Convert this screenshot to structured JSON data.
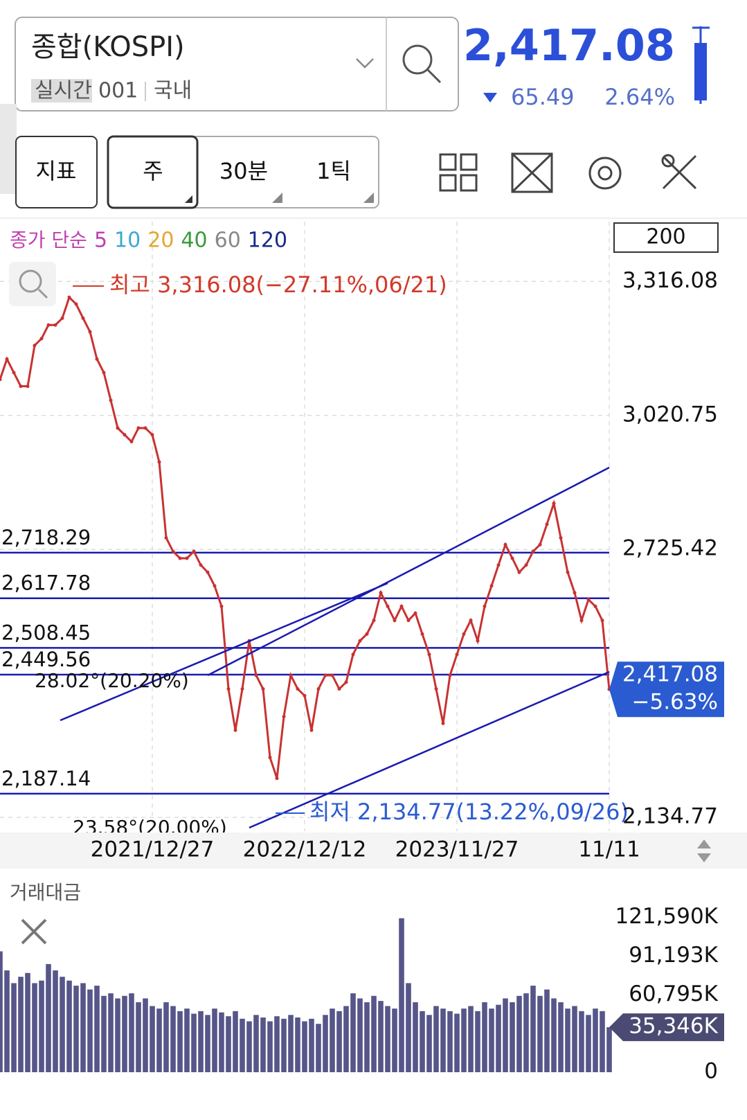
{
  "header": {
    "symbol": "종합(KOSPI)",
    "tags": [
      "실시간",
      "001",
      "국내"
    ],
    "price": "2,417.08",
    "change": "65.49",
    "change_pct": "2.64%"
  },
  "toolbar": {
    "buttons": [
      "지표",
      "주",
      "30분",
      "1틱"
    ]
  },
  "chart_data": [
    {
      "type": "line",
      "legend_title": "종가 단순",
      "ma_periods": [
        5,
        10,
        20,
        40,
        60,
        120
      ],
      "ma_colors": [
        "#c03fb0",
        "#3ea8d0",
        "#e0a830",
        "#3a9a3a",
        "#888888",
        "#1a2a8a"
      ],
      "visible_count": 200,
      "color": "#c83232",
      "categories": [
        null,
        null,
        null,
        null,
        null,
        null,
        null,
        null,
        null,
        null,
        null,
        null,
        null,
        null,
        null,
        null,
        null,
        null,
        null,
        null,
        null,
        null,
        "2021/12/27",
        null,
        null,
        null,
        null,
        null,
        null,
        null,
        null,
        null,
        null,
        null,
        null,
        null,
        null,
        null,
        null,
        null,
        null,
        null,
        null,
        null,
        "2022/12/12",
        null,
        null,
        null,
        null,
        null,
        null,
        null,
        null,
        null,
        null,
        null,
        null,
        null,
        null,
        null,
        null,
        null,
        null,
        null,
        null,
        null,
        "2023/11/27",
        null,
        null,
        null,
        null,
        null,
        null,
        null,
        null,
        null,
        null,
        null,
        null,
        null,
        null,
        null,
        null,
        null,
        null,
        null,
        null,
        null,
        "11/11"
      ],
      "values": [
        3100,
        3145,
        3115,
        3085,
        3085,
        3175,
        3190,
        3220,
        3220,
        3235,
        3281,
        3266,
        3235,
        3205,
        3145,
        3115,
        3054,
        2993,
        2978,
        2963,
        2993,
        2993,
        2978,
        2918,
        2751,
        2721,
        2706,
        2706,
        2721,
        2691,
        2675,
        2645,
        2600,
        2418,
        2327,
        2418,
        2524,
        2448,
        2418,
        2267,
        2221,
        2357,
        2448,
        2418,
        2403,
        2327,
        2418,
        2448,
        2448,
        2418,
        2433,
        2494,
        2524,
        2539,
        2569,
        2630,
        2600,
        2569,
        2600,
        2569,
        2585,
        2539,
        2494,
        2418,
        2342,
        2448,
        2494,
        2539,
        2569,
        2524,
        2600,
        2645,
        2691,
        2736,
        2706,
        2675,
        2691,
        2721,
        2736,
        2781,
        2827,
        2751,
        2675,
        2630,
        2569,
        2615,
        2600,
        2569,
        2417.08
      ],
      "ylim": [
        2104.5,
        3447.8
      ],
      "yticks": [
        {
          "value": 3316.08,
          "label": "3,316.08"
        },
        {
          "value": 3020.75,
          "label": "3,020.75"
        },
        {
          "value": 2725.42,
          "label": "2,725.42"
        },
        {
          "value": 2134.77,
          "label": "2,134.77"
        }
      ],
      "levels": [
        {
          "value": 2718.29,
          "label": "2,718.29"
        },
        {
          "value": 2617.78,
          "label": "2,617.78"
        },
        {
          "value": 2508.45,
          "label": "2,508.45"
        },
        {
          "value": 2449.56,
          "label": "2,449.56"
        },
        {
          "value": 2187.14,
          "label": "2,187.14"
        }
      ],
      "high_note": "최고 3,316.08(−27.11%,06/21)",
      "low_note": "최저 2,134.77(13.22%,09/26)",
      "angle_notes": [
        "28.02°(20.20%)",
        "23.58°(20.00%)"
      ],
      "last_label": "2,417.08",
      "last_change": "−5.63%",
      "grid": true
    },
    {
      "type": "bar",
      "title": "거래대금",
      "color": "#56568a",
      "values": [
        95000,
        80000,
        70000,
        75000,
        78000,
        70000,
        72000,
        85000,
        80000,
        75000,
        72000,
        68000,
        70000,
        65000,
        68000,
        60000,
        62000,
        58000,
        60000,
        62000,
        55000,
        58000,
        52000,
        50000,
        55000,
        52000,
        48000,
        50000,
        46000,
        48000,
        45000,
        50000,
        47000,
        44000,
        48000,
        42000,
        40000,
        45000,
        43000,
        40000,
        44000,
        42000,
        45000,
        43000,
        40000,
        42000,
        38000,
        45000,
        50000,
        48000,
        52000,
        62000,
        58000,
        55000,
        60000,
        56000,
        52000,
        50000,
        121000,
        70000,
        55000,
        48000,
        45000,
        52000,
        50000,
        48000,
        46000,
        50000,
        52000,
        48000,
        55000,
        50000,
        53000,
        58000,
        55000,
        60000,
        62000,
        68000,
        60000,
        65000,
        58000,
        55000,
        50000,
        52000,
        48000,
        45000,
        50000,
        48000,
        35346
      ],
      "ylim": [
        0,
        135000
      ],
      "yticks": [
        {
          "value": 121590,
          "label": "121,590K"
        },
        {
          "value": 91193,
          "label": "91,193K"
        },
        {
          "value": 60795,
          "label": "60,795K"
        },
        0
      ],
      "last_label": "35,346K"
    }
  ]
}
